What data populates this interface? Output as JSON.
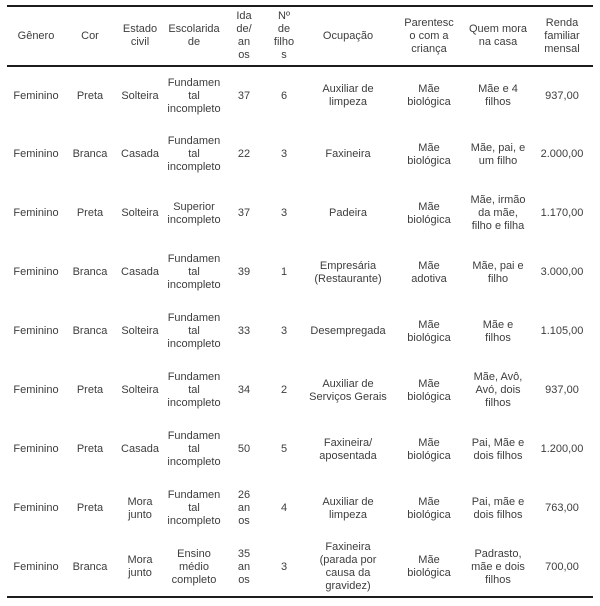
{
  "colors": {
    "text": "#3d3d3d",
    "line": "#1c1c1c",
    "background": "#ffffff"
  },
  "table": {
    "columns": [
      {
        "id": "genero",
        "label": "Gênero"
      },
      {
        "id": "cor",
        "label": "Cor"
      },
      {
        "id": "estado-civil",
        "label": "Estado\ncivil"
      },
      {
        "id": "escolaridade",
        "label": "Escolarida\nde"
      },
      {
        "id": "idade-anos",
        "label": "Ida\nde/\nan\nos"
      },
      {
        "id": "num-filhos",
        "label": "Nº\nde\nfilho\ns"
      },
      {
        "id": "ocupacao",
        "label": "Ocupação"
      },
      {
        "id": "parentesco",
        "label": "Parentesc\no com a\ncriança"
      },
      {
        "id": "quem-mora",
        "label": "Quem mora\nna casa"
      },
      {
        "id": "renda",
        "label": "Renda\nfamiliar\nmensal"
      }
    ],
    "rows": [
      {
        "cells": [
          "Feminino",
          "Preta",
          "Solteira",
          "Fundamen\ntal\nincompleto",
          "37",
          "6",
          "Auxiliar de\nlimpeza",
          "Mãe\nbiológica",
          "Mãe e 4\nfilhos",
          "937,00"
        ]
      },
      {
        "cells": [
          "Feminino",
          "Branca",
          "Casada",
          "Fundamen\ntal\nincompleto",
          "22",
          "3",
          "Faxineira",
          "Mãe\nbiológica",
          "Mãe, pai, e\num filho",
          "2.000,00"
        ]
      },
      {
        "cells": [
          "Feminino",
          "Preta",
          "Solteira",
          "Superior\nincompleto",
          "37",
          "3",
          "Padeira",
          "Mãe\nbiológica",
          "Mãe, irmão\nda mãe,\nfilho e filha",
          "1.170,00"
        ]
      },
      {
        "cells": [
          "Feminino",
          "Branca",
          "Casada",
          "Fundamen\ntal\nincompleto",
          "39",
          "1",
          "Empresária\n(Restaurante)",
          "Mãe\nadotiva",
          "Mãe, pai e\nfilho",
          "3.000,00"
        ]
      },
      {
        "cells": [
          "Feminino",
          "Branca",
          "Solteira",
          "Fundamen\ntal\nincompleto",
          "33",
          "3",
          "Desempregada",
          "Mãe\nbiológica",
          "Mãe e\nfilhos",
          "1.105,00"
        ]
      },
      {
        "cells": [
          "Feminino",
          "Preta",
          "Solteira",
          "Fundamen\ntal\nincompleto",
          "34",
          "2",
          "Auxiliar de\nServiços Gerais",
          "Mãe\nbiológica",
          "Mãe, Avô,\nAvó, dois\nfilhos",
          "937,00"
        ]
      },
      {
        "cells": [
          "Feminino",
          "Preta",
          "Casada",
          "Fundamen\ntal\nincompleto",
          "50",
          "5",
          "Faxineira/\naposentada",
          "Mãe\nbiológica",
          "Pai, Mãe e\ndois filhos",
          "1.200,00"
        ]
      },
      {
        "cells": [
          "Feminino",
          "Preta",
          "Mora\njunto",
          "Fundamen\ntal\nincompleto",
          "26\nan\nos",
          "4",
          "Auxiliar de\nlimpeza",
          "Mãe\nbiológica",
          "Pai, mãe e\ndois filhos",
          "763,00"
        ]
      },
      {
        "cells": [
          "Feminino",
          "Branca",
          "Mora\njunto",
          "Ensino\nmédio\ncompleto",
          "35\nan\nos",
          "3",
          "Faxineira\n(parada por\ncausa da\ngravidez)",
          "Mãe\nbiológica",
          "Padrasto,\nmãe e dois\nfilhos",
          "700,00"
        ]
      }
    ]
  }
}
